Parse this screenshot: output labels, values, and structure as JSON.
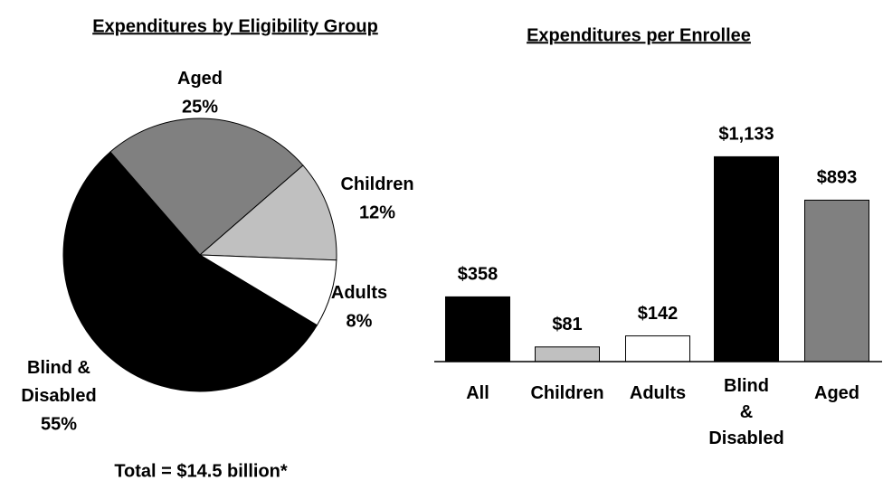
{
  "chart_data": [
    {
      "type": "pie",
      "title": "Expenditures by Eligibility Group",
      "categories": [
        "Aged",
        "Children",
        "Adults",
        "Blind & Disabled"
      ],
      "values": [
        25,
        12,
        8,
        55
      ],
      "value_labels": [
        "25%",
        "12%",
        "8%",
        "55%"
      ],
      "colors": [
        "#808080",
        "#c0c0c0",
        "#ffffff",
        "#000000"
      ],
      "note": "Total = $14.5 billion*"
    },
    {
      "type": "bar",
      "title": "Expenditures per Enrollee",
      "categories": [
        "All",
        "Children",
        "Adults",
        "Blind & Disabled",
        "Aged"
      ],
      "values": [
        358,
        81,
        142,
        1133,
        893
      ],
      "value_labels": [
        "$358",
        "$81",
        "$142",
        "$1,133",
        "$893"
      ],
      "colors": [
        "#000000",
        "#c0c0c0",
        "#ffffff",
        "#000000",
        "#808080"
      ],
      "ylim": [
        0,
        1160
      ]
    }
  ]
}
